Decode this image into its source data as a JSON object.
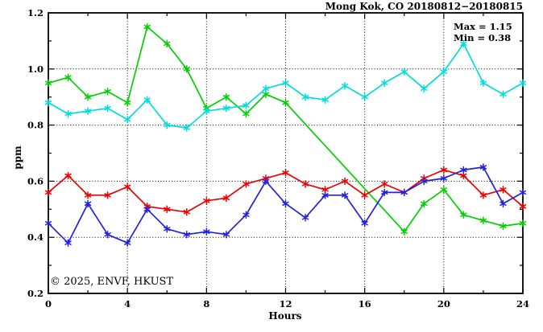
{
  "header": {
    "title": "Mong Kok, CO 20180812−20180815"
  },
  "annotations": {
    "max": "Max = 1.15",
    "min": "Min = 0.38"
  },
  "watermark": {
    "text": "© 2025, ENVF, HKUST",
    "color": "#dcdcdc"
  },
  "colors": {
    "axis": "#000000",
    "grid": "#000000",
    "background": "#ffffff"
  },
  "chart_data": {
    "type": "line",
    "title": "Mong Kok, CO 20180812−20180815",
    "xlabel": "Hours",
    "ylabel": "ppm",
    "xlim": [
      0,
      24
    ],
    "ylim": [
      0.2,
      1.2
    ],
    "x_major_ticks": [
      0,
      4,
      8,
      12,
      16,
      20,
      24
    ],
    "x_minor_ticks": [
      2,
      6,
      10,
      14,
      18,
      22
    ],
    "y_major_ticks": [
      0.2,
      0.4,
      0.6,
      0.8,
      1.0,
      1.2
    ],
    "y_minor_ticks": [
      0.3,
      0.5,
      0.7,
      0.9,
      1.1
    ],
    "grid_x": [
      4,
      8,
      12,
      16,
      20
    ],
    "grid_y": [
      0.4,
      0.6,
      0.8,
      1.0
    ],
    "grid_on": true,
    "legend": "none",
    "marker": "asterisk",
    "x": [
      0,
      1,
      2,
      3,
      4,
      5,
      6,
      7,
      8,
      9,
      10,
      11,
      12,
      13,
      14,
      15,
      16,
      17,
      18,
      19,
      20,
      21,
      22,
      23,
      24
    ],
    "series": [
      {
        "name": "green",
        "color": "#00d000",
        "values": [
          0.95,
          0.97,
          0.9,
          0.92,
          0.88,
          1.15,
          1.09,
          1.0,
          0.86,
          0.9,
          0.84,
          0.91,
          0.88,
          null,
          null,
          null,
          null,
          null,
          0.42,
          0.52,
          0.57,
          0.48,
          0.46,
          0.44,
          0.45
        ]
      },
      {
        "name": "cyan",
        "color": "#00dddd",
        "values": [
          0.88,
          0.84,
          0.85,
          0.86,
          0.82,
          0.89,
          0.8,
          0.79,
          0.85,
          0.86,
          0.87,
          0.93,
          0.95,
          0.9,
          0.89,
          0.94,
          0.9,
          0.95,
          0.99,
          0.93,
          0.99,
          1.09,
          0.95,
          0.91,
          0.95
        ]
      },
      {
        "name": "red",
        "color": "#ee0000",
        "values": [
          0.56,
          0.62,
          0.55,
          0.55,
          0.58,
          0.51,
          0.5,
          0.49,
          0.53,
          0.54,
          0.59,
          0.61,
          0.63,
          0.59,
          0.57,
          0.6,
          0.55,
          0.59,
          0.56,
          0.61,
          0.64,
          0.62,
          0.55,
          0.57,
          0.51
        ]
      },
      {
        "name": "blue",
        "color": "#2222dd",
        "values": [
          0.45,
          0.38,
          0.52,
          0.41,
          0.38,
          0.5,
          0.43,
          0.41,
          0.42,
          0.41,
          0.48,
          0.6,
          0.52,
          0.47,
          0.55,
          0.55,
          0.45,
          0.56,
          0.56,
          0.6,
          0.61,
          0.64,
          0.65,
          0.52,
          0.56
        ]
      }
    ],
    "max": 1.15,
    "min": 0.38
  }
}
